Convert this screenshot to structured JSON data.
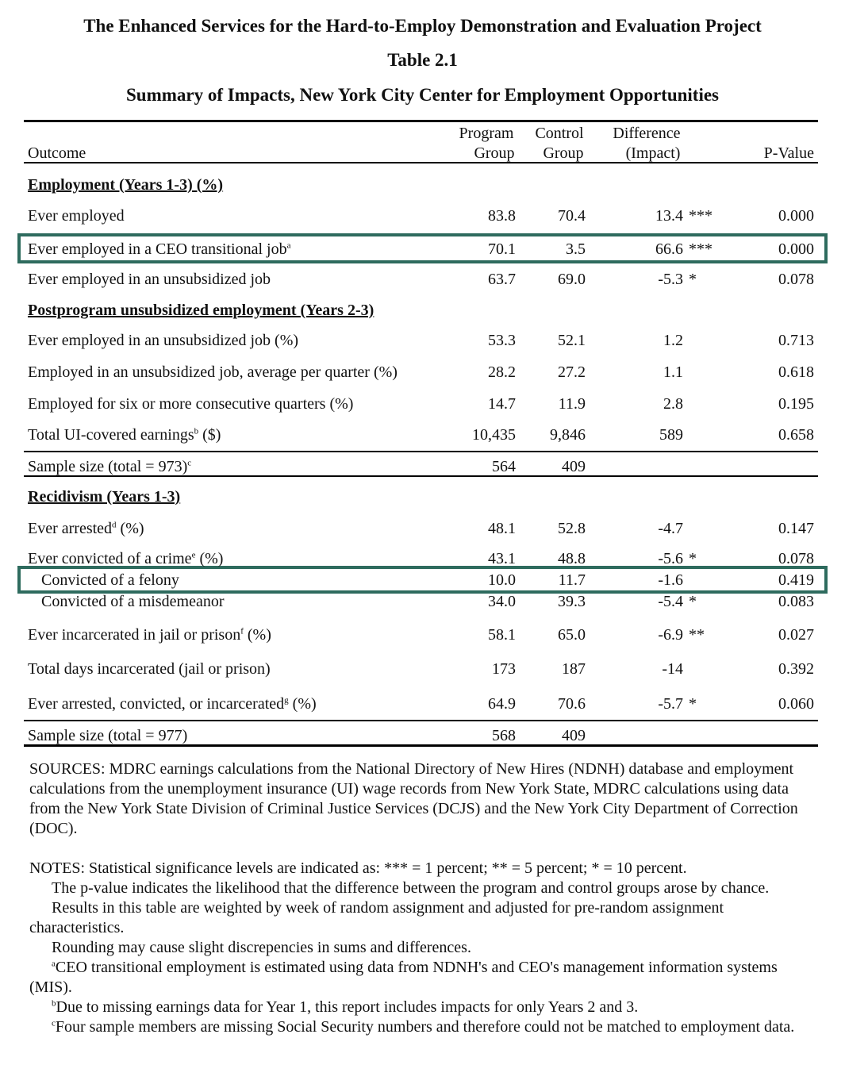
{
  "header": {
    "title": "The Enhanced Services for the Hard-to-Employ Demonstration and Evaluation Project",
    "table_label": "Table 2.1",
    "subtitle": "Summary of Impacts, New York City Center for Employment Opportunities"
  },
  "columns": {
    "outcome": "Outcome",
    "program_1": "Program",
    "program_2": "Group",
    "control_1": "Control",
    "control_2": "Group",
    "diff_1": "Difference",
    "diff_2": "(Impact)",
    "pvalue": "P-Value"
  },
  "sections": {
    "employment": "Employment (Years 1-3) (%)",
    "postprogram": "Postprogram unsubsidized employment  (Years 2-3)",
    "recidivism": "Recidivism (Years 1-3)"
  },
  "rows": [
    {
      "label": "Ever employed",
      "sup": "",
      "suffix": "",
      "program": "83.8",
      "control": "70.4",
      "diff": "13.4",
      "stars": "***",
      "pvalue": "0.000"
    },
    {
      "label": "Ever employed in a CEO transitional job",
      "sup": "a",
      "suffix": "",
      "program": "70.1",
      "control": "3.5",
      "diff": "66.6",
      "stars": "***",
      "pvalue": "0.000"
    },
    {
      "label": "Ever employed in an unsubsidized job",
      "sup": "",
      "suffix": "",
      "program": "63.7",
      "control": "69.0",
      "diff": "-5.3",
      "stars": "*",
      "pvalue": "0.078"
    },
    {
      "label": "Ever employed in an unsubsidized job (%)",
      "sup": "",
      "suffix": "",
      "program": "53.3",
      "control": "52.1",
      "diff": "1.2",
      "stars": "",
      "pvalue": "0.713"
    },
    {
      "label": "Employed in an unsubsidized job, average per quarter (%)",
      "sup": "",
      "suffix": "",
      "program": "28.2",
      "control": "27.2",
      "diff": "1.1",
      "stars": "",
      "pvalue": "0.618"
    },
    {
      "label": "Employed for six or more consecutive quarters (%)",
      "sup": "",
      "suffix": "",
      "program": "14.7",
      "control": "11.9",
      "diff": "2.8",
      "stars": "",
      "pvalue": "0.195"
    },
    {
      "label": "Total UI-covered earnings",
      "sup": "b",
      "suffix": " ($)",
      "program": "10,435",
      "control": "9,846",
      "diff": "589",
      "stars": "",
      "pvalue": "0.658"
    },
    {
      "label": "Sample size (total = 973)",
      "sup": "c",
      "suffix": "",
      "program": "564",
      "control": "409",
      "diff": "",
      "stars": "",
      "pvalue": ""
    },
    {
      "label": "Ever arrested",
      "sup": "d",
      "suffix": " (%)",
      "program": "48.1",
      "control": "52.8",
      "diff": "-4.7",
      "stars": "",
      "pvalue": "0.147"
    },
    {
      "label": "Ever convicted of a crime",
      "sup": "e",
      "suffix": " (%)",
      "program": "43.1",
      "control": "48.8",
      "diff": "-5.6",
      "stars": "*",
      "pvalue": "0.078"
    },
    {
      "label": "Convicted of a felony",
      "sup": "",
      "suffix": "",
      "program": "10.0",
      "control": "11.7",
      "diff": "-1.6",
      "stars": "",
      "pvalue": "0.419"
    },
    {
      "label": "Convicted of a misdemeanor",
      "sup": "",
      "suffix": "",
      "program": "34.0",
      "control": "39.3",
      "diff": "-5.4",
      "stars": "*",
      "pvalue": "0.083"
    },
    {
      "label": "Ever incarcerated in jail or prison",
      "sup": "f",
      "suffix": " (%)",
      "program": "58.1",
      "control": "65.0",
      "diff": "-6.9",
      "stars": "**",
      "pvalue": "0.027"
    },
    {
      "label": "Total days incarcerated (jail or prison)",
      "sup": "",
      "suffix": "",
      "program": "173",
      "control": "187",
      "diff": "-14",
      "stars": "",
      "pvalue": "0.392"
    },
    {
      "label": "Ever arrested, convicted, or incarcerated",
      "sup": "g",
      "suffix": " (%)",
      "program": "64.9",
      "control": "70.6",
      "diff": "-5.7",
      "stars": "*",
      "pvalue": "0.060"
    },
    {
      "label": "Sample size (total = 977)",
      "sup": "",
      "suffix": "",
      "program": "568",
      "control": "409",
      "diff": "",
      "stars": "",
      "pvalue": ""
    }
  ],
  "sources": "SOURCES: MDRC earnings calculations from the National Directory of New Hires (NDNH) database and employment calculations from the unemployment insurance (UI) wage records from New York State, MDRC calculations using data from the New York State Division of Criminal Justice Services (DCJS) and the New York City Department of Correction (DOC).",
  "notes": {
    "n0": "NOTES: Statistical significance levels are indicated as: *** = 1 percent; ** = 5 percent; * = 10 percent.",
    "n1": "The p-value indicates the likelihood that the difference between the program and control groups arose by chance.",
    "n2": "Results in this table are weighted by week of random assignment and adjusted for pre-random assignment characteristics.",
    "n3": "Rounding may cause slight discrepencies in sums and differences.",
    "fa_mark": "a",
    "fa": "CEO transitional employment is estimated using data from NDNH's and CEO's management information systems (MIS).",
    "fb_mark": "b",
    "fb": "Due to missing earnings data for Year 1, this report includes impacts for only Years 2 and 3.",
    "fc_mark": "c",
    "fc": "Four sample members are missing Social Security numbers and therefore could not be matched to employment data."
  },
  "colors": {
    "highlight": "#2e6b5e"
  }
}
